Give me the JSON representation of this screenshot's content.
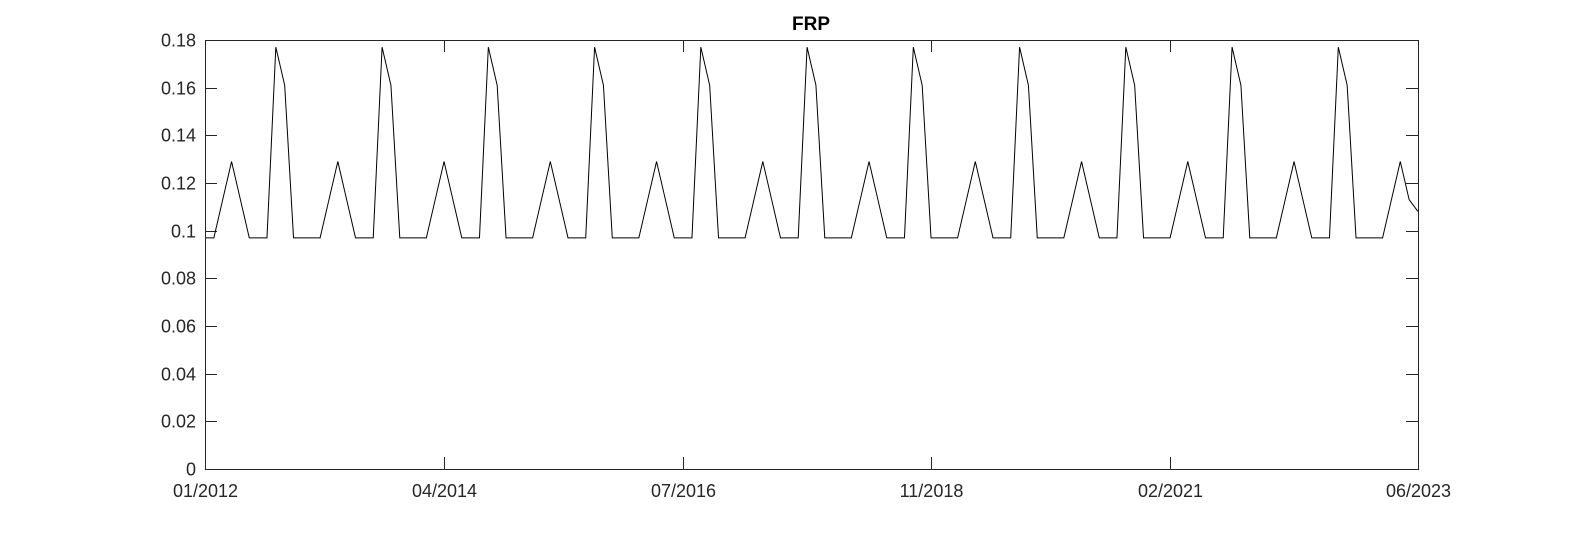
{
  "chart_data": {
    "type": "line",
    "title": "FRP",
    "xlabel": "",
    "ylabel": "",
    "x_start": "2012-01",
    "x_end": "2023-06",
    "xlim": [
      "2012-01",
      "2023-06"
    ],
    "ylim": [
      0,
      0.18
    ],
    "grid": false,
    "legend": "none",
    "line_color": "#000000",
    "yticks": [
      0,
      0.02,
      0.04,
      0.06,
      0.08,
      0.1,
      0.12,
      0.14,
      0.16,
      0.18
    ],
    "ytick_labels": [
      "0",
      "0.02",
      "0.04",
      "0.06",
      "0.08",
      "0.1",
      "0.12",
      "0.14",
      "0.16",
      "0.18"
    ],
    "xticks": [
      "2012-01",
      "2014-04",
      "2016-07",
      "2018-11",
      "2021-02",
      "2023-06"
    ],
    "xtick_labels": [
      "01/2012",
      "04/2014",
      "07/2016",
      "11/2018",
      "02/2021",
      "06/2023"
    ],
    "series": [
      {
        "name": "",
        "x": [
          "2012-01",
          "2012-02",
          "2012-03",
          "2012-04",
          "2012-05",
          "2012-06",
          "2012-07",
          "2012-08",
          "2012-09",
          "2012-10",
          "2012-11",
          "2012-12",
          "2013-01",
          "2013-02",
          "2013-03",
          "2013-04",
          "2013-05",
          "2013-06",
          "2013-07",
          "2013-08",
          "2013-09",
          "2013-10",
          "2013-11",
          "2013-12",
          "2014-01",
          "2014-02",
          "2014-03",
          "2014-04",
          "2014-05",
          "2014-06",
          "2014-07",
          "2014-08",
          "2014-09",
          "2014-10",
          "2014-11",
          "2014-12",
          "2015-01",
          "2015-02",
          "2015-03",
          "2015-04",
          "2015-05",
          "2015-06",
          "2015-07",
          "2015-08",
          "2015-09",
          "2015-10",
          "2015-11",
          "2015-12",
          "2016-01",
          "2016-02",
          "2016-03",
          "2016-04",
          "2016-05",
          "2016-06",
          "2016-07",
          "2016-08",
          "2016-09",
          "2016-10",
          "2016-11",
          "2016-12",
          "2017-01",
          "2017-02",
          "2017-03",
          "2017-04",
          "2017-05",
          "2017-06",
          "2017-07",
          "2017-08",
          "2017-09",
          "2017-10",
          "2017-11",
          "2017-12",
          "2018-01",
          "2018-02",
          "2018-03",
          "2018-04",
          "2018-05",
          "2018-06",
          "2018-07",
          "2018-08",
          "2018-09",
          "2018-10",
          "2018-11",
          "2018-12",
          "2019-01",
          "2019-02",
          "2019-03",
          "2019-04",
          "2019-05",
          "2019-06",
          "2019-07",
          "2019-08",
          "2019-09",
          "2019-10",
          "2019-11",
          "2019-12",
          "2020-01",
          "2020-02",
          "2020-03",
          "2020-04",
          "2020-05",
          "2020-06",
          "2020-07",
          "2020-08",
          "2020-09",
          "2020-10",
          "2020-11",
          "2020-12",
          "2021-01",
          "2021-02",
          "2021-03",
          "2021-04",
          "2021-05",
          "2021-06",
          "2021-07",
          "2021-08",
          "2021-09",
          "2021-10",
          "2021-11",
          "2021-12",
          "2022-01",
          "2022-02",
          "2022-03",
          "2022-04",
          "2022-05",
          "2022-06",
          "2022-07",
          "2022-08",
          "2022-09",
          "2022-10",
          "2022-11",
          "2022-12",
          "2023-01",
          "2023-02",
          "2023-03",
          "2023-04",
          "2023-05",
          "2023-06"
        ],
        "values": [
          0.097,
          0.097,
          0.113,
          0.129,
          0.113,
          0.097,
          0.097,
          0.097,
          0.177,
          0.161,
          0.097,
          0.097,
          0.097,
          0.097,
          0.113,
          0.129,
          0.113,
          0.097,
          0.097,
          0.097,
          0.177,
          0.161,
          0.097,
          0.097,
          0.097,
          0.097,
          0.113,
          0.129,
          0.113,
          0.097,
          0.097,
          0.097,
          0.177,
          0.161,
          0.097,
          0.097,
          0.097,
          0.097,
          0.113,
          0.129,
          0.113,
          0.097,
          0.097,
          0.097,
          0.177,
          0.161,
          0.097,
          0.097,
          0.097,
          0.097,
          0.113,
          0.129,
          0.113,
          0.097,
          0.097,
          0.097,
          0.177,
          0.161,
          0.097,
          0.097,
          0.097,
          0.097,
          0.113,
          0.129,
          0.113,
          0.097,
          0.097,
          0.097,
          0.177,
          0.161,
          0.097,
          0.097,
          0.097,
          0.097,
          0.113,
          0.129,
          0.113,
          0.097,
          0.097,
          0.097,
          0.177,
          0.161,
          0.097,
          0.097,
          0.097,
          0.097,
          0.113,
          0.129,
          0.113,
          0.097,
          0.097,
          0.097,
          0.177,
          0.161,
          0.097,
          0.097,
          0.097,
          0.097,
          0.113,
          0.129,
          0.113,
          0.097,
          0.097,
          0.097,
          0.177,
          0.161,
          0.097,
          0.097,
          0.097,
          0.097,
          0.113,
          0.129,
          0.113,
          0.097,
          0.097,
          0.097,
          0.177,
          0.161,
          0.097,
          0.097,
          0.097,
          0.097,
          0.113,
          0.129,
          0.113,
          0.097,
          0.097,
          0.097,
          0.177,
          0.161,
          0.097,
          0.097,
          0.097,
          0.097,
          0.113,
          0.129,
          0.113,
          0.108
        ]
      }
    ]
  }
}
